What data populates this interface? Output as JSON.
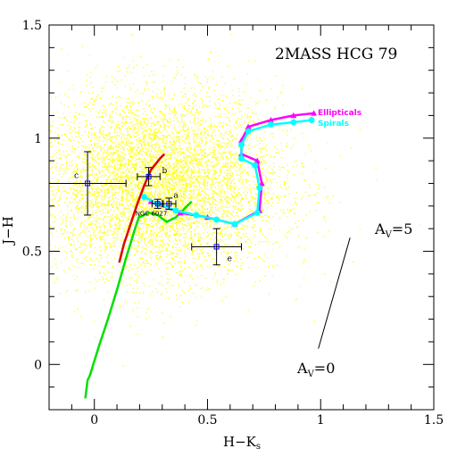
{
  "chart_data": {
    "type": "scatter",
    "title": "2MASS HCG 79",
    "xlabel": "H−K",
    "xlabel_sub": "s",
    "ylabel": "J−H",
    "xlim": [
      -0.2,
      1.5
    ],
    "ylim": [
      -0.2,
      1.5
    ],
    "x_major_ticks": [
      0,
      0.5,
      1,
      1.5
    ],
    "y_major_ticks": [
      0,
      0.5,
      1,
      1.5
    ],
    "x_tick_labels": [
      "0",
      "0.5",
      "1",
      "1.5"
    ],
    "y_tick_labels": [
      "0",
      "0.5",
      "1",
      "1.5"
    ],
    "background_cloud": {
      "color": "#ffff00",
      "center": [
        0.28,
        0.8
      ],
      "spread": [
        0.27,
        0.2
      ]
    },
    "series": [
      {
        "name": "Ellipticals",
        "color": "#ff00ff",
        "marker": "triangle",
        "x": [
          0.25,
          0.38,
          0.5,
          0.62,
          0.73,
          0.74,
          0.72,
          0.65,
          0.65,
          0.68,
          0.78,
          0.88,
          0.97
        ],
        "y": [
          0.72,
          0.67,
          0.65,
          0.62,
          0.68,
          0.8,
          0.9,
          0.93,
          0.99,
          1.05,
          1.08,
          1.1,
          1.11
        ]
      },
      {
        "name": "Spirals",
        "color": "#00ffff",
        "marker": "star",
        "x": [
          0.22,
          0.28,
          0.36,
          0.45,
          0.54,
          0.62,
          0.72,
          0.73,
          0.71,
          0.65,
          0.65,
          0.68,
          0.78,
          0.88,
          0.96
        ],
        "y": [
          0.74,
          0.71,
          0.68,
          0.66,
          0.64,
          0.62,
          0.67,
          0.78,
          0.88,
          0.91,
          0.97,
          1.03,
          1.06,
          1.07,
          1.08
        ]
      }
    ],
    "curves": [
      {
        "color": "#00e000",
        "x": [
          -0.04,
          -0.03,
          -0.02,
          0.02,
          0.06,
          0.1,
          0.14,
          0.18,
          0.2
        ],
        "y": [
          -0.15,
          -0.07,
          -0.05,
          0.08,
          0.2,
          0.33,
          0.47,
          0.6,
          0.66
        ]
      },
      {
        "color": "#e00000",
        "x": [
          0.11,
          0.13,
          0.16,
          0.19,
          0.22,
          0.25,
          0.29,
          0.31
        ],
        "y": [
          0.45,
          0.53,
          0.62,
          0.71,
          0.79,
          0.86,
          0.91,
          0.93
        ]
      },
      {
        "color": "#00e000",
        "x": [
          0.2,
          0.24,
          0.28,
          0.32,
          0.36,
          0.4,
          0.43
        ],
        "y": [
          0.65,
          0.67,
          0.66,
          0.63,
          0.65,
          0.69,
          0.72
        ]
      }
    ],
    "data_points": [
      {
        "label": "c",
        "x": -0.03,
        "y": 0.8,
        "xerr": 0.17,
        "yerr": 0.14
      },
      {
        "label": "b",
        "x": 0.24,
        "y": 0.83,
        "xerr": 0.05,
        "yerr": 0.04
      },
      {
        "label": "a",
        "x": 0.33,
        "y": 0.71,
        "xerr": 0.03,
        "yerr": 0.025
      },
      {
        "label": "NGC 6027",
        "x": 0.28,
        "y": 0.71,
        "xerr": 0.025,
        "yerr": 0.02
      },
      {
        "label": "e",
        "x": 0.54,
        "y": 0.52,
        "xerr": 0.11,
        "yerr": 0.08
      }
    ],
    "reddening_vector": {
      "start_label": "A",
      "start_sub": "V",
      "start_value": "=0",
      "end_label": "A",
      "end_sub": "V",
      "end_value": "=5",
      "x": [
        0.99,
        1.13
      ],
      "y": [
        0.07,
        0.56
      ]
    }
  }
}
